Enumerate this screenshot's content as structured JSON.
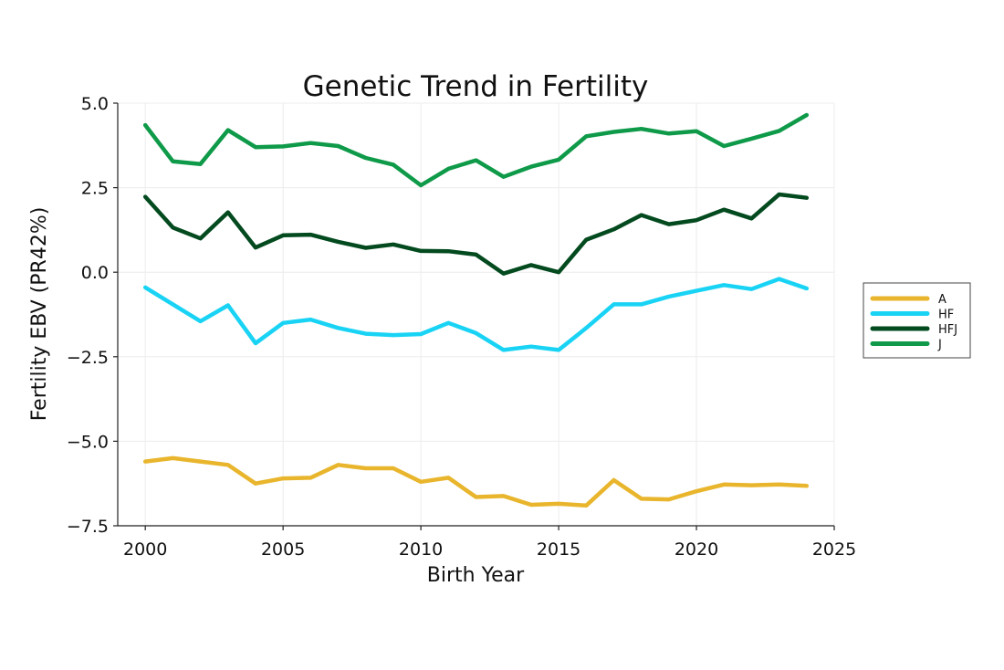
{
  "chart_data": {
    "type": "line",
    "title": "Genetic Trend in Fertility",
    "xlabel": "Birth Year",
    "ylabel": "Fertility EBV (PR42%)",
    "xlim": [
      1999,
      2025
    ],
    "ylim": [
      -7.5,
      5.0
    ],
    "xticks": [
      2000,
      2005,
      2010,
      2015,
      2020,
      2025
    ],
    "yticks": [
      5.0,
      2.5,
      0.0,
      -2.5,
      -5.0,
      -7.5
    ],
    "ytick_labels": [
      "5.0",
      "2.5",
      "0.0",
      "−2.5",
      "−5.0",
      "−7.5"
    ],
    "grid": true,
    "legend_position": "right",
    "x": [
      2000,
      2001,
      2002,
      2003,
      2004,
      2005,
      2006,
      2007,
      2008,
      2009,
      2010,
      2011,
      2012,
      2013,
      2014,
      2015,
      2016,
      2017,
      2018,
      2019,
      2020,
      2021,
      2022,
      2023,
      2024
    ],
    "series": [
      {
        "name": "A",
        "color": "#E8B52C",
        "values": [
          -5.6,
          -5.5,
          -5.6,
          -5.7,
          -6.25,
          -6.1,
          -6.08,
          -5.7,
          -5.8,
          -5.8,
          -6.2,
          -6.08,
          -6.65,
          -6.62,
          -6.88,
          -6.85,
          -6.9,
          -6.15,
          -6.7,
          -6.72,
          -6.48,
          -6.28,
          -6.3,
          -6.28,
          -6.32
        ]
      },
      {
        "name": "HF",
        "color": "#19D3F5",
        "values": [
          -0.45,
          -0.95,
          -1.45,
          -0.98,
          -2.1,
          -1.5,
          -1.4,
          -1.65,
          -1.82,
          -1.86,
          -1.83,
          -1.5,
          -1.8,
          -2.3,
          -2.2,
          -2.3,
          -1.65,
          -0.95,
          -0.95,
          -0.72,
          -0.55,
          -0.38,
          -0.5,
          -0.2,
          -0.48
        ]
      },
      {
        "name": "HFJ",
        "color": "#034A1F",
        "values": [
          2.23,
          1.32,
          1.0,
          1.77,
          0.73,
          1.09,
          1.11,
          0.9,
          0.72,
          0.82,
          0.63,
          0.62,
          0.52,
          -0.04,
          0.21,
          0.0,
          0.96,
          1.27,
          1.69,
          1.42,
          1.54,
          1.85,
          1.59,
          2.3,
          2.2
        ]
      },
      {
        "name": "J",
        "color": "#0E9A49",
        "values": [
          4.35,
          3.28,
          3.2,
          4.2,
          3.7,
          3.72,
          3.82,
          3.73,
          3.38,
          3.18,
          2.57,
          3.06,
          3.31,
          2.82,
          3.12,
          3.33,
          4.02,
          4.15,
          4.24,
          4.1,
          4.17,
          3.73,
          3.95,
          4.18,
          4.65
        ]
      }
    ]
  }
}
